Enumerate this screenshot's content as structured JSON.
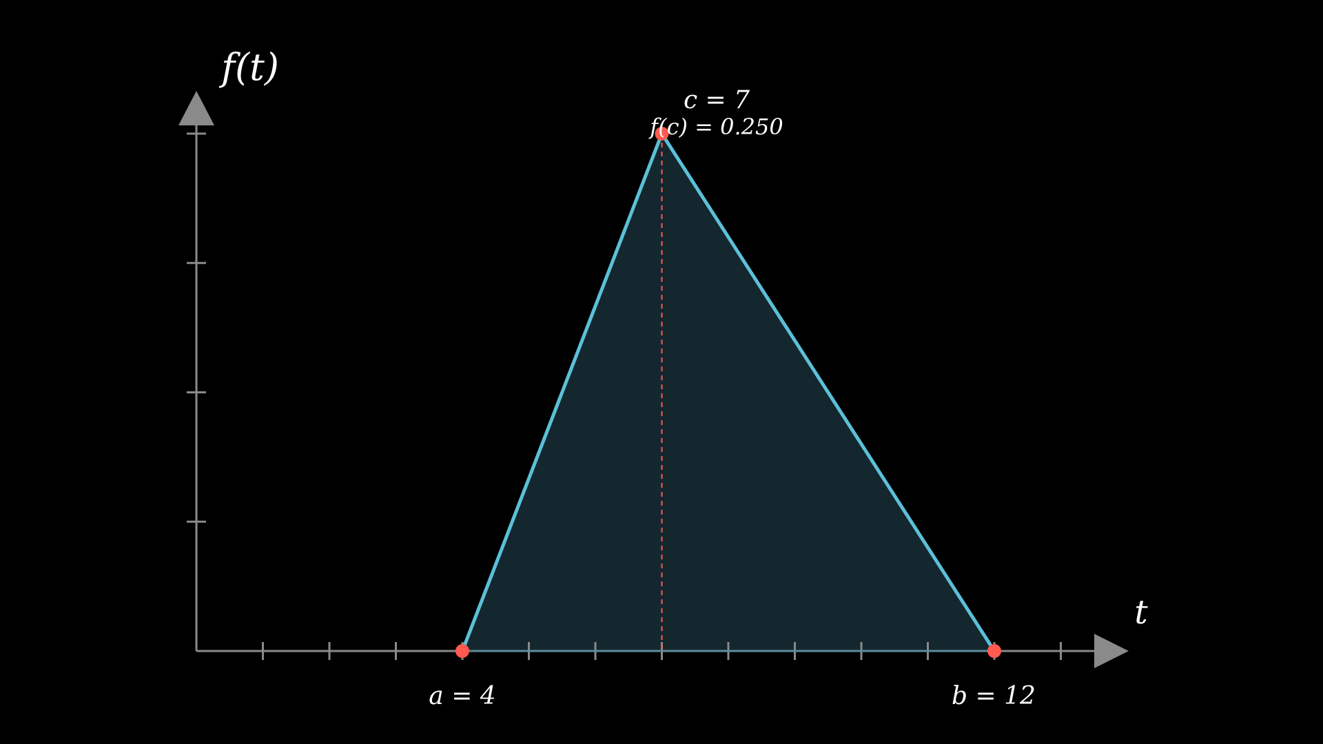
{
  "chart_data": {
    "type": "area",
    "title": "",
    "xlabel": "t",
    "ylabel": "f(t)",
    "xlim": [
      0,
      13.5
    ],
    "ylim": [
      0,
      0.25
    ],
    "x_ticks": [
      1,
      2,
      3,
      4,
      5,
      6,
      7,
      8,
      9,
      10,
      11,
      12,
      13
    ],
    "y_ticks": [
      0.0625,
      0.125,
      0.1875,
      0.25
    ],
    "grid": false,
    "series": [
      {
        "x": [
          4,
          7,
          12
        ],
        "y": [
          0,
          0.25,
          0
        ]
      }
    ],
    "points": [
      {
        "name": "a",
        "x": 4,
        "y": 0
      },
      {
        "name": "c",
        "x": 7,
        "y": 0.25
      },
      {
        "name": "b",
        "x": 12,
        "y": 0
      }
    ],
    "annotations": {
      "a_label": "a = 4",
      "b_label": "b = 12",
      "c_label": "c = 7",
      "fc_label": "f(c) = 0.250"
    },
    "colors": {
      "axis": "#8a8a8a",
      "curve": "#5bc0d8",
      "fill": "#14272e",
      "point": "#ff5a4f",
      "guide": "#ff5a4f",
      "text": "#ffffff"
    }
  }
}
